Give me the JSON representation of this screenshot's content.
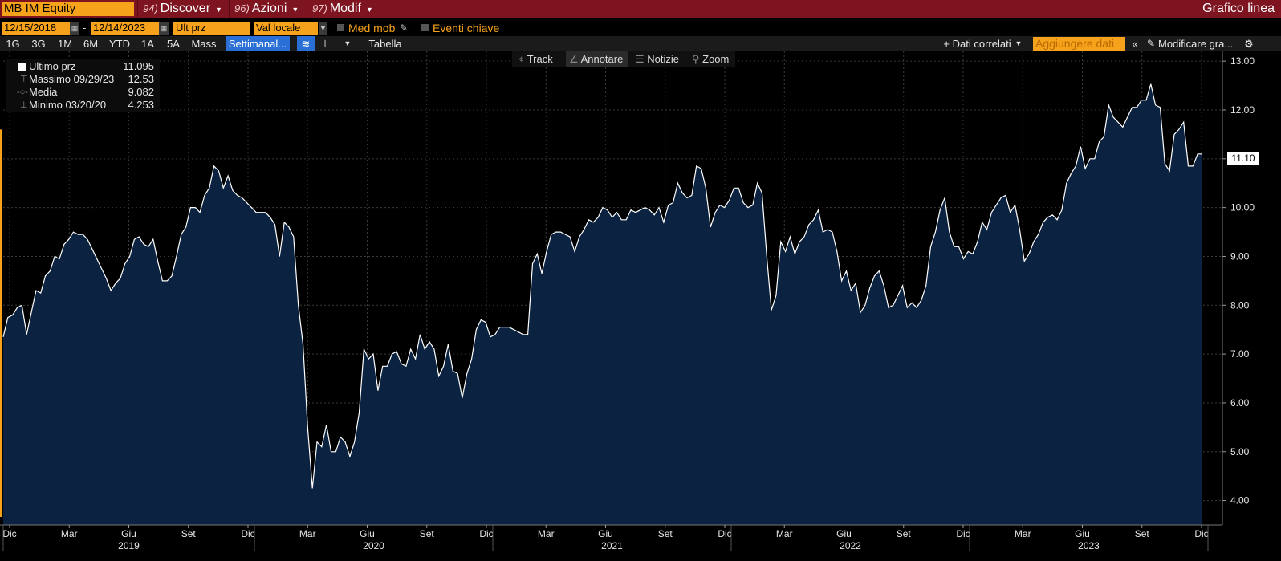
{
  "header": {
    "ticker": "MB IM Equity",
    "menus": [
      {
        "num": "94)",
        "label": "Discover"
      },
      {
        "num": "96)",
        "label": "Azioni"
      },
      {
        "num": "97)",
        "label": "Modif"
      }
    ],
    "chart_type": "Grafico linea"
  },
  "controls": {
    "start_date": "12/15/2018",
    "dash": "-",
    "end_date": "12/14/2023",
    "field": "Ult prz",
    "currency": "Val locale",
    "moving_avg": "Med mob",
    "key_events": "Eventi chiave"
  },
  "ranges": [
    "1G",
    "3G",
    "1M",
    "6M",
    "YTD",
    "1A",
    "5A",
    "Mass"
  ],
  "frequency": "Settimanal...",
  "table_label": "Tabella",
  "related_data": "+ Dati correlati",
  "add_data": "Aggiungere dati",
  "edit_chart": "Modificare gra...",
  "tools": [
    "Track",
    "Annotare",
    "Notizie",
    "Zoom"
  ],
  "legend": [
    {
      "label": "Ultimo prz",
      "value": "11.095"
    },
    {
      "label": "Massimo 09/29/23",
      "value": "12.53"
    },
    {
      "label": "Media",
      "value": "9.082"
    },
    {
      "label": "Minimo 03/20/20",
      "value": "4.253"
    }
  ],
  "last_badge": "11.10",
  "colors": {
    "line": "#ffffff",
    "fill": "#0b2340",
    "accent": "#f7a21b",
    "header": "#7d1420"
  },
  "chart_data": {
    "type": "area",
    "ylim": [
      3.5,
      13.2
    ],
    "yticks": [
      "4.00",
      "5.00",
      "6.00",
      "7.00",
      "8.00",
      "9.00",
      "10.00",
      "11.00",
      "12.00",
      "13.00"
    ],
    "month_labels": [
      "Dic",
      "Mar",
      "Giu",
      "Set",
      "Dic",
      "Mar",
      "Giu",
      "Set",
      "Dic",
      "Mar",
      "Giu",
      "Set",
      "Dic",
      "Mar",
      "Giu",
      "Set",
      "Dic",
      "Mar",
      "Giu",
      "Set",
      "Dic"
    ],
    "year_labels": [
      "2019",
      "2020",
      "2021",
      "2022",
      "2023"
    ],
    "x_start": "2018-12-15",
    "x_step": "1 week",
    "values": [
      7.35,
      7.75,
      7.8,
      7.95,
      8.0,
      7.4,
      7.85,
      8.3,
      8.25,
      8.6,
      8.7,
      9.0,
      8.95,
      9.25,
      9.35,
      9.5,
      9.45,
      9.45,
      9.35,
      9.15,
      8.95,
      8.75,
      8.55,
      8.3,
      8.45,
      8.55,
      8.85,
      9.0,
      9.35,
      9.4,
      9.25,
      9.2,
      9.35,
      8.9,
      8.5,
      8.5,
      8.6,
      9.0,
      9.45,
      9.6,
      10.0,
      10.0,
      9.9,
      10.25,
      10.4,
      10.85,
      10.75,
      10.4,
      10.65,
      10.35,
      10.25,
      10.2,
      10.1,
      10.0,
      9.9,
      9.9,
      9.9,
      9.8,
      9.65,
      9.0,
      9.7,
      9.6,
      9.4,
      8.0,
      7.2,
      5.5,
      4.25,
      5.2,
      5.1,
      5.55,
      5.0,
      5.0,
      5.3,
      5.2,
      4.9,
      5.2,
      5.8,
      7.1,
      6.9,
      7.0,
      6.25,
      6.75,
      6.75,
      7.0,
      7.05,
      6.8,
      6.75,
      7.1,
      6.9,
      7.4,
      7.1,
      7.25,
      7.1,
      6.55,
      6.75,
      7.2,
      6.65,
      6.6,
      6.1,
      6.6,
      6.9,
      7.5,
      7.7,
      7.65,
      7.35,
      7.4,
      7.55,
      7.55,
      7.55,
      7.5,
      7.45,
      7.4,
      7.4,
      8.85,
      9.05,
      8.65,
      9.1,
      9.45,
      9.5,
      9.5,
      9.45,
      9.4,
      9.1,
      9.4,
      9.55,
      9.75,
      9.7,
      9.8,
      10.0,
      9.95,
      9.8,
      9.9,
      9.75,
      9.75,
      9.95,
      9.9,
      9.95,
      10.0,
      9.95,
      9.85,
      10.0,
      9.7,
      10.05,
      10.1,
      10.5,
      10.3,
      10.2,
      10.25,
      10.85,
      10.8,
      10.4,
      9.6,
      9.9,
      10.05,
      10.0,
      10.15,
      10.4,
      10.4,
      10.1,
      10.0,
      10.05,
      10.5,
      10.3,
      9.0,
      7.9,
      8.2,
      9.3,
      9.1,
      9.4,
      9.05,
      9.3,
      9.4,
      9.65,
      9.75,
      9.95,
      9.5,
      9.55,
      9.5,
      9.1,
      8.5,
      8.7,
      8.3,
      8.45,
      7.85,
      8.0,
      8.35,
      8.6,
      8.7,
      8.4,
      7.95,
      8.0,
      8.2,
      8.4,
      7.95,
      8.05,
      7.95,
      8.1,
      8.4,
      9.2,
      9.5,
      9.95,
      10.2,
      9.5,
      9.2,
      9.2,
      8.95,
      9.1,
      9.05,
      9.3,
      9.7,
      9.55,
      9.9,
      10.05,
      10.2,
      10.25,
      9.9,
      10.05,
      9.55,
      8.9,
      9.05,
      9.3,
      9.45,
      9.7,
      9.8,
      9.85,
      9.75,
      9.95,
      10.5,
      10.7,
      10.85,
      11.25,
      10.8,
      11.0,
      11.0,
      11.35,
      11.45,
      12.1,
      11.85,
      11.75,
      11.65,
      11.85,
      12.05,
      12.05,
      12.2,
      12.2,
      12.53,
      12.1,
      12.05,
      10.9,
      10.75,
      11.5,
      11.6,
      11.75,
      10.85,
      10.85,
      11.1,
      11.095
    ]
  }
}
